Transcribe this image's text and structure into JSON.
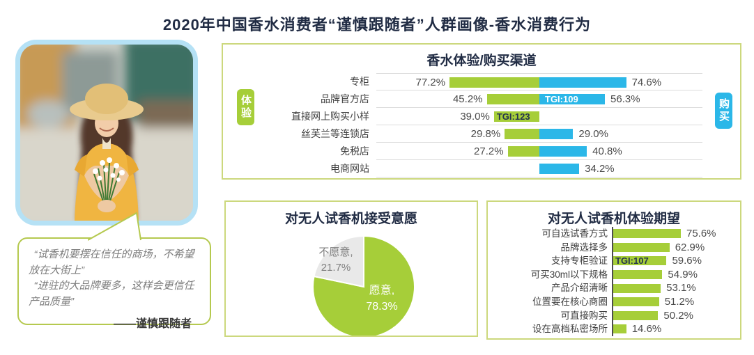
{
  "page": {
    "title": "2020年中国香水消费者“谨慎跟随者”人群画像-香水消费行为"
  },
  "portrait": {
    "description": "戴草帽、穿黄色连衣裙、手捧白色花束的年轻女性照片"
  },
  "quote": {
    "line1": "“试香机要摆在信任的商场，不希望放在大街上”",
    "line2": "“进驻的大品牌要多，这样会更信任产品质量”",
    "author": "——谨慎跟随者"
  },
  "channel_chart": {
    "title": "香水体验/购买渠道",
    "left_badge": "体验",
    "right_badge": "购买"
  },
  "pie_chart": {
    "title": "对无人试香机接受意愿"
  },
  "expect_chart": {
    "title": "对无人试香机体验期望"
  },
  "colors": {
    "green": "#a6ce39",
    "blue": "#2bb7e8",
    "navy_title": "#212c44",
    "olive_border": "#ccd87d",
    "pie_gray": "#e9e9e9",
    "gray_text": "#7f7f7f",
    "photo_frame": "#b5e1f5",
    "separator": "#dcdcdc"
  },
  "chart_data": [
    {
      "type": "bar",
      "orientation": "diverging-horizontal",
      "title": "香水体验/购买渠道",
      "categories": [
        "专柜",
        "品牌官方店",
        "直接网上购买小样",
        "丝芙兰等连锁店",
        "免税店",
        "电商网站"
      ],
      "series": [
        {
          "name": "体验",
          "color": "#a6ce39",
          "values": [
            77.2,
            45.2,
            39.0,
            29.8,
            27.2,
            null
          ]
        },
        {
          "name": "购买",
          "color": "#2bb7e8",
          "values": [
            74.6,
            56.3,
            null,
            29.0,
            40.8,
            34.2
          ]
        }
      ],
      "annotations": [
        {
          "row": 1,
          "series": "购买",
          "label": "TGI:109"
        },
        {
          "row": 2,
          "series": "体验",
          "label": "TGI:123"
        }
      ],
      "unit": "%"
    },
    {
      "type": "pie",
      "title": "对无人试香机接受意愿",
      "slices": [
        {
          "label": "愿意",
          "value": 78.3,
          "color": "#a6ce39"
        },
        {
          "label": "不愿意",
          "value": 21.7,
          "color": "#e9e9e9"
        }
      ],
      "start_angle_deg": 0,
      "direction": "clockwise"
    },
    {
      "type": "bar",
      "orientation": "horizontal",
      "title": "对无人试香机体验期望",
      "categories": [
        "可自选试香方式",
        "品牌选择多",
        "支持专柜验证",
        "可买30ml以下规格",
        "产品介绍清晰",
        "位置要在核心商圈",
        "可直接购买",
        "设在高档私密场所"
      ],
      "values": [
        75.6,
        62.9,
        59.6,
        54.9,
        53.1,
        51.2,
        50.2,
        14.6
      ],
      "annotations": [
        {
          "row": 2,
          "label": "TGI:107"
        }
      ],
      "bar_color": "#a6ce39",
      "unit": "%"
    }
  ]
}
